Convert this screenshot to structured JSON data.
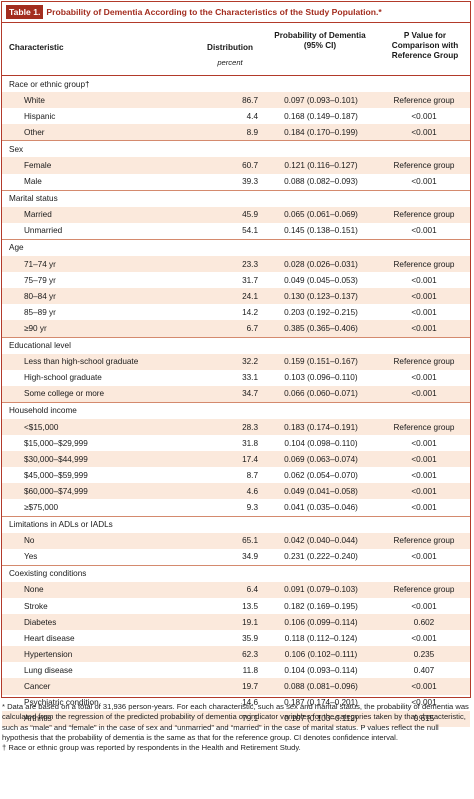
{
  "table": {
    "label": "Table 1.",
    "title": "Probability of Dementia According to the Characteristics of the Study Population.*",
    "headers": {
      "characteristic": "Characteristic",
      "distribution": "Distribution",
      "distribution_unit": "percent",
      "probability": "Probability of Dementia (95% CI)",
      "pvalue": "P Value for Comparison with Reference Group"
    },
    "groups": [
      {
        "name": "Race or ethnic group†",
        "rows": [
          {
            "c": "White",
            "d": "86.7",
            "p": "0.097 (0.093–0.101)",
            "v": "Reference group"
          },
          {
            "c": "Hispanic",
            "d": "4.4",
            "p": "0.168 (0.149–0.187)",
            "v": "<0.001"
          },
          {
            "c": "Other",
            "d": "8.9",
            "p": "0.184 (0.170–0.199)",
            "v": "<0.001"
          }
        ]
      },
      {
        "name": "Sex",
        "rows": [
          {
            "c": "Female",
            "d": "60.7",
            "p": "0.121 (0.116–0.127)",
            "v": "Reference group"
          },
          {
            "c": "Male",
            "d": "39.3",
            "p": "0.088 (0.082–0.093)",
            "v": "<0.001"
          }
        ]
      },
      {
        "name": "Marital status",
        "rows": [
          {
            "c": "Married",
            "d": "45.9",
            "p": "0.065 (0.061–0.069)",
            "v": "Reference group"
          },
          {
            "c": "Unmarried",
            "d": "54.1",
            "p": "0.145 (0.138–0.151)",
            "v": "<0.001"
          }
        ]
      },
      {
        "name": "Age",
        "rows": [
          {
            "c": "71–74 yr",
            "d": "23.3",
            "p": "0.028 (0.026–0.031)",
            "v": "Reference group"
          },
          {
            "c": "75–79 yr",
            "d": "31.7",
            "p": "0.049 (0.045–0.053)",
            "v": "<0.001"
          },
          {
            "c": "80–84 yr",
            "d": "24.1",
            "p": "0.130 (0.123–0.137)",
            "v": "<0.001"
          },
          {
            "c": "85–89 yr",
            "d": "14.2",
            "p": "0.203 (0.192–0.215)",
            "v": "<0.001"
          },
          {
            "c": "≥90 yr",
            "d": "6.7",
            "p": "0.385 (0.365–0.406)",
            "v": "<0.001"
          }
        ]
      },
      {
        "name": "Educational level",
        "rows": [
          {
            "c": "Less than high-school graduate",
            "d": "32.2",
            "p": "0.159 (0.151–0.167)",
            "v": "Reference group"
          },
          {
            "c": "High-school graduate",
            "d": "33.1",
            "p": "0.103 (0.096–0.110)",
            "v": "<0.001"
          },
          {
            "c": "Some college or more",
            "d": "34.7",
            "p": "0.066 (0.060–0.071)",
            "v": "<0.001"
          }
        ]
      },
      {
        "name": "Household income",
        "rows": [
          {
            "c": "<$15,000",
            "d": "28.3",
            "p": "0.183 (0.174–0.191)",
            "v": "Reference group"
          },
          {
            "c": "$15,000–$29,999",
            "d": "31.8",
            "p": "0.104 (0.098–0.110)",
            "v": "<0.001"
          },
          {
            "c": "$30,000–$44,999",
            "d": "17.4",
            "p": "0.069 (0.063–0.074)",
            "v": "<0.001"
          },
          {
            "c": "$45,000–$59,999",
            "d": "8.7",
            "p": "0.062 (0.054–0.070)",
            "v": "<0.001"
          },
          {
            "c": "$60,000–$74,999",
            "d": "4.6",
            "p": "0.049 (0.041–0.058)",
            "v": "<0.001"
          },
          {
            "c": "≥$75,000",
            "d": "9.3",
            "p": "0.041 (0.035–0.046)",
            "v": "<0.001"
          }
        ]
      },
      {
        "name": "Limitations in ADLs or IADLs",
        "rows": [
          {
            "c": "No",
            "d": "65.1",
            "p": "0.042 (0.040–0.044)",
            "v": "Reference group"
          },
          {
            "c": "Yes",
            "d": "34.9",
            "p": "0.231 (0.222–0.240)",
            "v": "<0.001"
          }
        ]
      },
      {
        "name": "Coexisting conditions",
        "rows": [
          {
            "c": "None",
            "d": "6.4",
            "p": "0.091 (0.079–0.103)",
            "v": "Reference group"
          },
          {
            "c": "Stroke",
            "d": "13.5",
            "p": "0.182 (0.169–0.195)",
            "v": "<0.001"
          },
          {
            "c": "Diabetes",
            "d": "19.1",
            "p": "0.106 (0.099–0.114)",
            "v": "0.602"
          },
          {
            "c": "Heart disease",
            "d": "35.9",
            "p": "0.118 (0.112–0.124)",
            "v": "<0.001"
          },
          {
            "c": "Hypertension",
            "d": "62.3",
            "p": "0.106 (0.102–0.111)",
            "v": "0.235"
          },
          {
            "c": "Lung disease",
            "d": "11.8",
            "p": "0.104 (0.093–0.114)",
            "v": "0.407"
          },
          {
            "c": "Cancer",
            "d": "19.7",
            "p": "0.088 (0.081–0.096)",
            "v": "<0.001"
          },
          {
            "c": "Psychiatric condition",
            "d": "14.6",
            "p": "0.187 (0.174–0.201)",
            "v": "<0.001"
          },
          {
            "c": "Arthritis",
            "d": "79.1",
            "p": "0.107 (0.103–0.112)",
            "v": "0.615"
          }
        ]
      }
    ]
  },
  "footnotes": [
    "* Data are based on a total of 31,936 person-years. For each characteristic, such as sex and marital status, the probability of dementia was calculated from the regression of the predicted probability of dementia on indicator variables for the categories taken by that characteristic, such as “male” and “female” in the case of sex and “unmarried” and “married” in the case of marital status. P values reflect the null hypothesis that the probability of dementia is the same as that for the reference group. CI denotes confidence interval.",
    "† Race or ethnic group was reported by respondents in the Health and Retirement Study."
  ],
  "colors": {
    "accent": "#a32d1f",
    "shade": "#fbe9dc"
  }
}
